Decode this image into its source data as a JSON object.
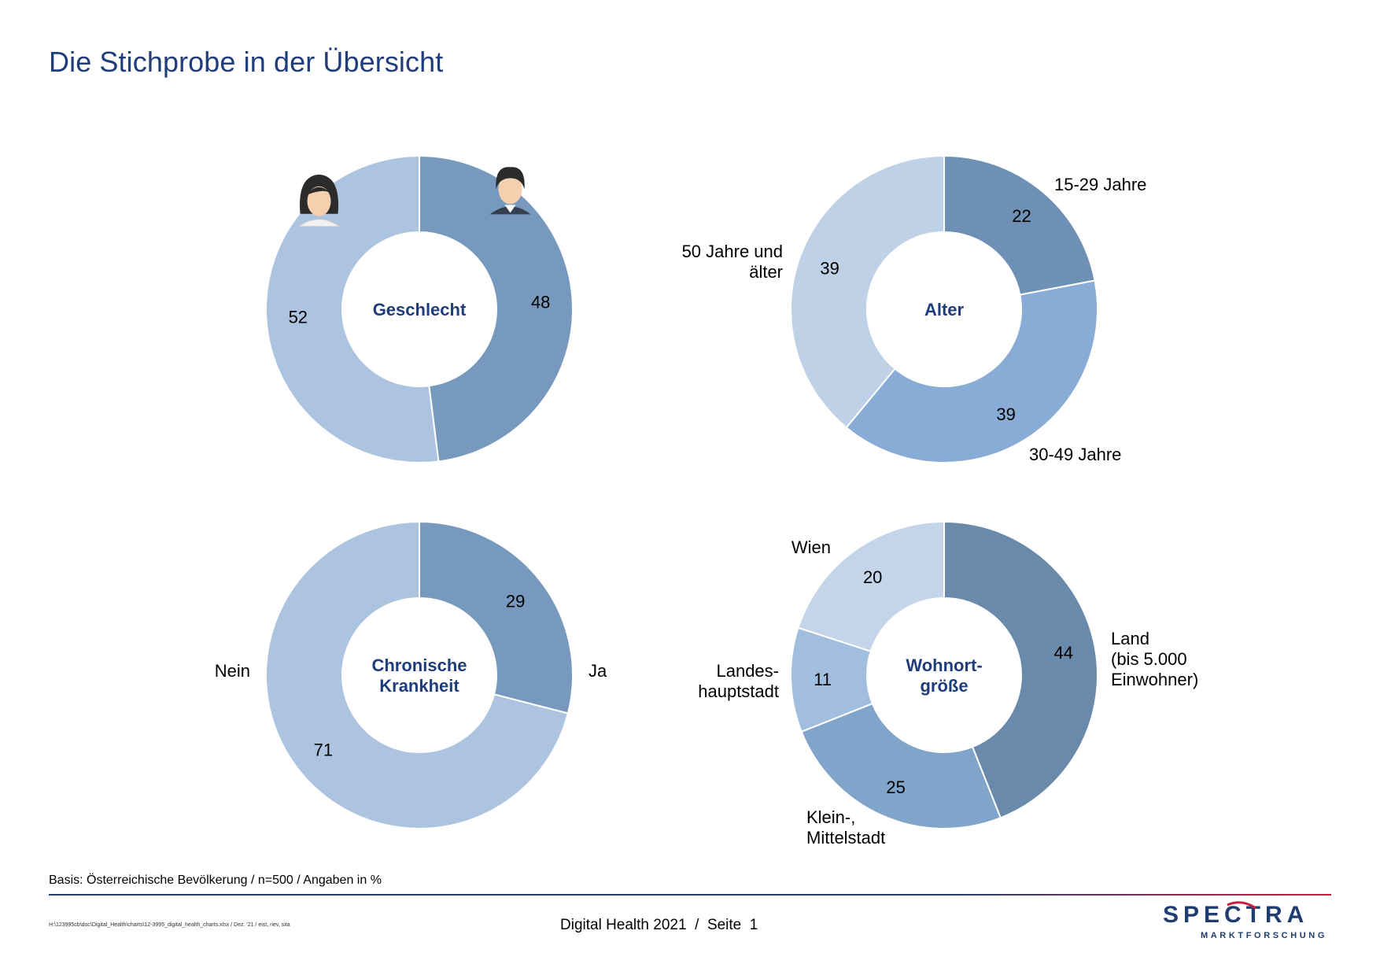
{
  "page": {
    "title": "Die Stichprobe in der Übersicht",
    "footnote": "Basis: Österreichische Bevölkerung / n=500 / Angaben in %",
    "file_path": "H:\\123995cb\\doc\\Digital_Health\\charts\\12-3995_digital_health_charts.xlsx / Dez. '21 / eist, riev, sita",
    "footer_text": "Digital Health 2021  /  Seite  1",
    "logo": {
      "name": "SPECTRA",
      "tagline": "MARKTFORSCHUNG"
    }
  },
  "colors": {
    "title": "#1f3d7a",
    "center_label": "#1f3d7a",
    "footer_rule": "#1f3d6e",
    "logo_accent": "#c8203a"
  },
  "chart_data": [
    {
      "type": "pie",
      "donut": true,
      "center_label": [
        "Geschlecht"
      ],
      "slices": [
        {
          "label": "",
          "value": 48,
          "color": "#7799be",
          "icon": "man-icon"
        },
        {
          "label": "",
          "value": 52,
          "color": "#adc4e1",
          "icon": "woman-icon"
        }
      ]
    },
    {
      "type": "pie",
      "donut": true,
      "center_label": [
        "Alter"
      ],
      "slices": [
        {
          "label": "15-29 Jahre",
          "value": 22,
          "color": "#6e90b4"
        },
        {
          "label": "30-49 Jahre",
          "value": 39,
          "color": "#89acd6"
        },
        {
          "label": "50 Jahre und älter",
          "value": 39,
          "color": "#bfd1e6"
        }
      ]
    },
    {
      "type": "pie",
      "donut": true,
      "center_label": [
        "Chronische",
        "Krankheit"
      ],
      "slices": [
        {
          "label": "Ja",
          "value": 29,
          "color": "#7799be"
        },
        {
          "label": "Nein",
          "value": 71,
          "color": "#adc4e1"
        }
      ]
    },
    {
      "type": "pie",
      "donut": true,
      "center_label": [
        "Wohnort-",
        "größe"
      ],
      "slices": [
        {
          "label": "Land (bis 5.000 Einwohner)",
          "value": 44,
          "color": "#6a8aab"
        },
        {
          "label": "Klein-, Mittelstadt",
          "value": 25,
          "color": "#80a4ca"
        },
        {
          "label": "Landes-hauptstadt",
          "value": 11,
          "color": "#a2bedf"
        },
        {
          "label": "Wien",
          "value": 20,
          "color": "#c4d5ea"
        }
      ]
    }
  ]
}
